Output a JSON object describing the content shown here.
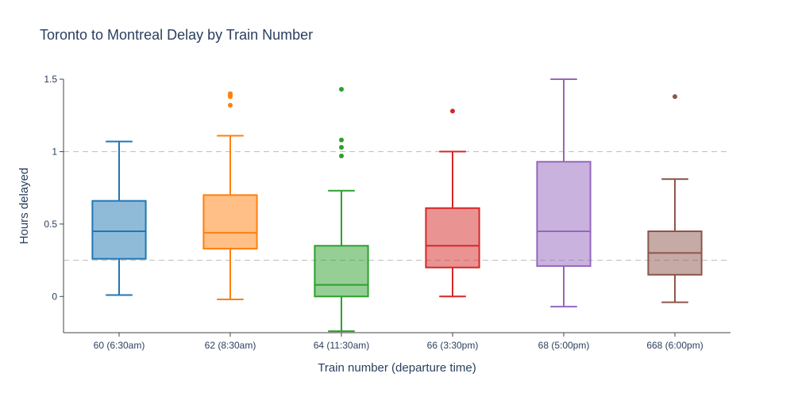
{
  "chart_data": {
    "type": "box",
    "title": "Toronto to Montreal Delay by Train Number",
    "xlabel": "Train number (departure time)",
    "ylabel": "Hours delayed",
    "ylim": [
      -0.25,
      1.5
    ],
    "yticks": [
      0,
      0.5,
      1,
      1.5
    ],
    "yticklabels": [
      "0",
      "0.5",
      "1",
      "1.5"
    ],
    "reference_lines": [
      0.25,
      1
    ],
    "grid": false,
    "legend": "none",
    "series": [
      {
        "category": "60 (6:30am)",
        "color": "#1f77b4",
        "min": 0.01,
        "q1": 0.26,
        "median": 0.45,
        "q3": 0.66,
        "max": 1.07,
        "outliers": []
      },
      {
        "category": "62 (8:30am)",
        "color": "#ff7f0e",
        "min": -0.02,
        "q1": 0.33,
        "median": 0.44,
        "q3": 0.7,
        "max": 1.11,
        "outliers": [
          1.32,
          1.38,
          1.39,
          1.4
        ]
      },
      {
        "category": "64 (11:30am)",
        "color": "#2ca02c",
        "min": -0.24,
        "q1": 0.0,
        "median": 0.08,
        "q3": 0.35,
        "max": 0.73,
        "outliers": [
          0.97,
          1.03,
          1.08,
          1.43
        ]
      },
      {
        "category": "66 (3:30pm)",
        "color": "#d62728",
        "min": 0.0,
        "q1": 0.2,
        "median": 0.35,
        "q3": 0.61,
        "max": 1.0,
        "outliers": [
          1.28
        ]
      },
      {
        "category": "68 (5:00pm)",
        "color": "#9467bd",
        "min": -0.07,
        "q1": 0.21,
        "median": 0.45,
        "q3": 0.93,
        "max": 1.5,
        "outliers": []
      },
      {
        "category": "668 (6:00pm)",
        "color": "#8c564b",
        "min": -0.04,
        "q1": 0.15,
        "median": 0.3,
        "q3": 0.45,
        "max": 0.81,
        "outliers": [
          1.38
        ]
      }
    ]
  }
}
